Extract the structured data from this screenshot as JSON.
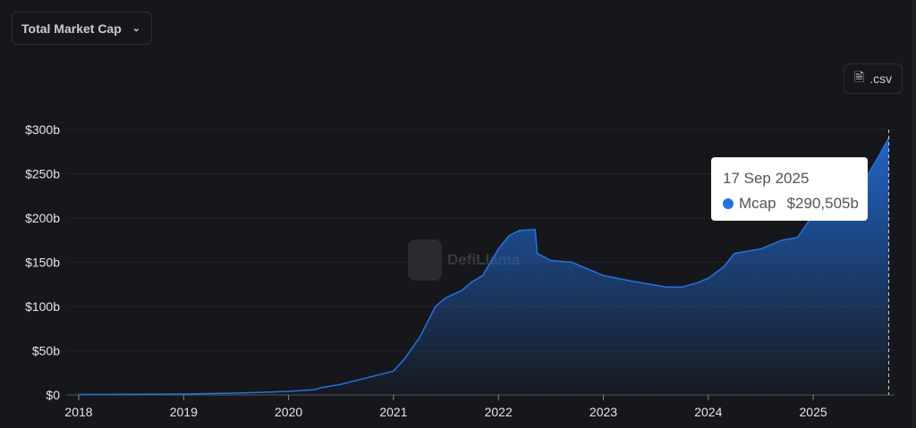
{
  "selector": {
    "label": "Total Market Cap"
  },
  "csv_button": {
    "label": ".csv"
  },
  "watermark": "DefiLlama",
  "tooltip": {
    "date": "17 Sep 2025",
    "series": "Mcap",
    "value": "$290,505b"
  },
  "colors": {
    "line": "#2172e5",
    "background": "#16171a"
  },
  "chart_data": {
    "type": "area",
    "ylim": [
      0,
      300
    ],
    "xlim": [
      2018,
      2025.72
    ],
    "grid": true,
    "y_ticks": [
      "$0",
      "$50b",
      "$100b",
      "$150b",
      "$200b",
      "$250b",
      "$300b"
    ],
    "x_ticks": [
      "2018",
      "2019",
      "2020",
      "2021",
      "2022",
      "2023",
      "2024",
      "2025"
    ],
    "series": [
      {
        "name": "Mcap",
        "x": [
          2018.0,
          2019.0,
          2019.5,
          2020.0,
          2020.25,
          2020.3,
          2020.5,
          2020.7,
          2021.0,
          2021.1,
          2021.25,
          2021.4,
          2021.5,
          2021.65,
          2021.75,
          2021.85,
          2022.0,
          2022.1,
          2022.2,
          2022.35,
          2022.37,
          2022.5,
          2022.7,
          2022.9,
          2023.0,
          2023.3,
          2023.6,
          2023.75,
          2023.9,
          2024.0,
          2024.15,
          2024.25,
          2024.5,
          2024.7,
          2024.85,
          2024.95,
          2025.0,
          2025.2,
          2025.35,
          2025.5,
          2025.6,
          2025.72
        ],
        "values": [
          0.5,
          1,
          2,
          4,
          6,
          8,
          12,
          18,
          27,
          40,
          65,
          100,
          110,
          118,
          128,
          135,
          165,
          180,
          186,
          187,
          160,
          152,
          150,
          140,
          135,
          128,
          122,
          122,
          127,
          132,
          145,
          160,
          165,
          175,
          178,
          195,
          215,
          222,
          220,
          245,
          265,
          290.5
        ]
      }
    ]
  }
}
